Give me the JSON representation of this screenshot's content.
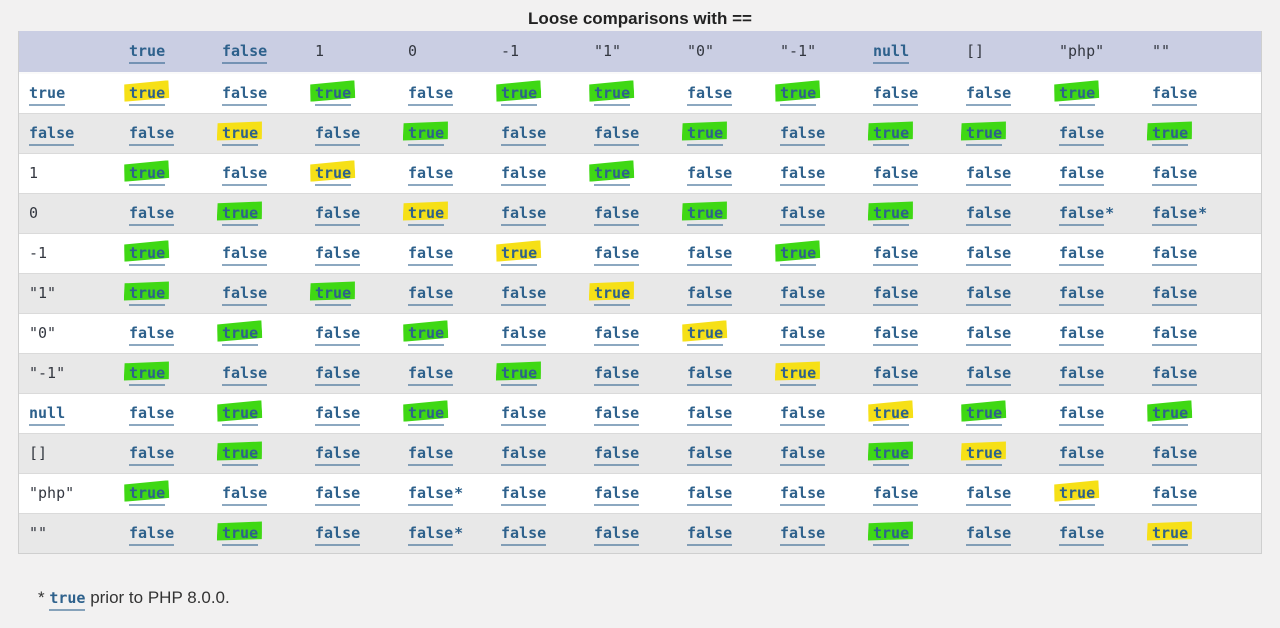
{
  "title": "Loose comparisons with ==",
  "colors": {
    "page_background": "#f2f1f1",
    "header_row_background": "#cacee3",
    "alt_row_background": "#e8e8e8",
    "link_blue": "#2e618c",
    "highlight_yellow": "#f6e017",
    "highlight_green": "#3fd814"
  },
  "table": {
    "columns": [
      {
        "label": "",
        "link": false
      },
      {
        "label": "true",
        "link": true
      },
      {
        "label": "false",
        "link": true
      },
      {
        "label": "1",
        "link": false
      },
      {
        "label": "0",
        "link": false
      },
      {
        "label": "-1",
        "link": false
      },
      {
        "label": "\"1\"",
        "link": false
      },
      {
        "label": "\"0\"",
        "link": false
      },
      {
        "label": "\"-1\"",
        "link": false
      },
      {
        "label": "null",
        "link": true
      },
      {
        "label": "[]",
        "link": false
      },
      {
        "label": "\"php\"",
        "link": false
      },
      {
        "label": "\"\"",
        "link": false
      }
    ],
    "rows": [
      {
        "label": "true",
        "link": true,
        "cells": [
          {
            "v": "true",
            "h": "yellow"
          },
          {
            "v": "false"
          },
          {
            "v": "true",
            "h": "green"
          },
          {
            "v": "false"
          },
          {
            "v": "true",
            "h": "green"
          },
          {
            "v": "true",
            "h": "green"
          },
          {
            "v": "false"
          },
          {
            "v": "true",
            "h": "green"
          },
          {
            "v": "false"
          },
          {
            "v": "false"
          },
          {
            "v": "true",
            "h": "green"
          },
          {
            "v": "false"
          }
        ]
      },
      {
        "label": "false",
        "link": true,
        "cells": [
          {
            "v": "false"
          },
          {
            "v": "true",
            "h": "yellow"
          },
          {
            "v": "false"
          },
          {
            "v": "true",
            "h": "green"
          },
          {
            "v": "false"
          },
          {
            "v": "false"
          },
          {
            "v": "true",
            "h": "green"
          },
          {
            "v": "false"
          },
          {
            "v": "true",
            "h": "green"
          },
          {
            "v": "true",
            "h": "green"
          },
          {
            "v": "false"
          },
          {
            "v": "true",
            "h": "green"
          }
        ]
      },
      {
        "label": "1",
        "link": false,
        "cells": [
          {
            "v": "true",
            "h": "green"
          },
          {
            "v": "false"
          },
          {
            "v": "true",
            "h": "yellow"
          },
          {
            "v": "false"
          },
          {
            "v": "false"
          },
          {
            "v": "true",
            "h": "green"
          },
          {
            "v": "false"
          },
          {
            "v": "false"
          },
          {
            "v": "false"
          },
          {
            "v": "false"
          },
          {
            "v": "false"
          },
          {
            "v": "false"
          }
        ]
      },
      {
        "label": "0",
        "link": false,
        "cells": [
          {
            "v": "false"
          },
          {
            "v": "true",
            "h": "green"
          },
          {
            "v": "false"
          },
          {
            "v": "true",
            "h": "yellow"
          },
          {
            "v": "false"
          },
          {
            "v": "false"
          },
          {
            "v": "true",
            "h": "green"
          },
          {
            "v": "false"
          },
          {
            "v": "true",
            "h": "green"
          },
          {
            "v": "false"
          },
          {
            "v": "false",
            "s": true
          },
          {
            "v": "false",
            "s": true
          }
        ]
      },
      {
        "label": "-1",
        "link": false,
        "cells": [
          {
            "v": "true",
            "h": "green"
          },
          {
            "v": "false"
          },
          {
            "v": "false"
          },
          {
            "v": "false"
          },
          {
            "v": "true",
            "h": "yellow"
          },
          {
            "v": "false"
          },
          {
            "v": "false"
          },
          {
            "v": "true",
            "h": "green"
          },
          {
            "v": "false"
          },
          {
            "v": "false"
          },
          {
            "v": "false"
          },
          {
            "v": "false"
          }
        ]
      },
      {
        "label": "\"1\"",
        "link": false,
        "cells": [
          {
            "v": "true",
            "h": "green"
          },
          {
            "v": "false"
          },
          {
            "v": "true",
            "h": "green"
          },
          {
            "v": "false"
          },
          {
            "v": "false"
          },
          {
            "v": "true",
            "h": "yellow"
          },
          {
            "v": "false"
          },
          {
            "v": "false"
          },
          {
            "v": "false"
          },
          {
            "v": "false"
          },
          {
            "v": "false"
          },
          {
            "v": "false"
          }
        ]
      },
      {
        "label": "\"0\"",
        "link": false,
        "cells": [
          {
            "v": "false"
          },
          {
            "v": "true",
            "h": "green"
          },
          {
            "v": "false"
          },
          {
            "v": "true",
            "h": "green"
          },
          {
            "v": "false"
          },
          {
            "v": "false"
          },
          {
            "v": "true",
            "h": "yellow"
          },
          {
            "v": "false"
          },
          {
            "v": "false"
          },
          {
            "v": "false"
          },
          {
            "v": "false"
          },
          {
            "v": "false"
          }
        ]
      },
      {
        "label": "\"-1\"",
        "link": false,
        "cells": [
          {
            "v": "true",
            "h": "green"
          },
          {
            "v": "false"
          },
          {
            "v": "false"
          },
          {
            "v": "false"
          },
          {
            "v": "true",
            "h": "green"
          },
          {
            "v": "false"
          },
          {
            "v": "false"
          },
          {
            "v": "true",
            "h": "yellow"
          },
          {
            "v": "false"
          },
          {
            "v": "false"
          },
          {
            "v": "false"
          },
          {
            "v": "false"
          }
        ]
      },
      {
        "label": "null",
        "link": true,
        "cells": [
          {
            "v": "false"
          },
          {
            "v": "true",
            "h": "green"
          },
          {
            "v": "false"
          },
          {
            "v": "true",
            "h": "green"
          },
          {
            "v": "false"
          },
          {
            "v": "false"
          },
          {
            "v": "false"
          },
          {
            "v": "false"
          },
          {
            "v": "true",
            "h": "yellow"
          },
          {
            "v": "true",
            "h": "green"
          },
          {
            "v": "false"
          },
          {
            "v": "true",
            "h": "green"
          }
        ]
      },
      {
        "label": "[]",
        "link": false,
        "cells": [
          {
            "v": "false"
          },
          {
            "v": "true",
            "h": "green"
          },
          {
            "v": "false"
          },
          {
            "v": "false"
          },
          {
            "v": "false"
          },
          {
            "v": "false"
          },
          {
            "v": "false"
          },
          {
            "v": "false"
          },
          {
            "v": "true",
            "h": "green"
          },
          {
            "v": "true",
            "h": "yellow"
          },
          {
            "v": "false"
          },
          {
            "v": "false"
          }
        ]
      },
      {
        "label": "\"php\"",
        "link": false,
        "cells": [
          {
            "v": "true",
            "h": "green"
          },
          {
            "v": "false"
          },
          {
            "v": "false"
          },
          {
            "v": "false",
            "s": true
          },
          {
            "v": "false"
          },
          {
            "v": "false"
          },
          {
            "v": "false"
          },
          {
            "v": "false"
          },
          {
            "v": "false"
          },
          {
            "v": "false"
          },
          {
            "v": "true",
            "h": "yellow"
          },
          {
            "v": "false"
          }
        ]
      },
      {
        "label": "\"\"",
        "link": false,
        "cells": [
          {
            "v": "false"
          },
          {
            "v": "true",
            "h": "green"
          },
          {
            "v": "false"
          },
          {
            "v": "false",
            "s": true
          },
          {
            "v": "false"
          },
          {
            "v": "false"
          },
          {
            "v": "false"
          },
          {
            "v": "false"
          },
          {
            "v": "true",
            "h": "green"
          },
          {
            "v": "false"
          },
          {
            "v": "false"
          },
          {
            "v": "true",
            "h": "yellow"
          }
        ]
      }
    ]
  },
  "footnote": {
    "prefix": "* ",
    "link": "true",
    "suffix": " prior to PHP 8.0.0."
  }
}
